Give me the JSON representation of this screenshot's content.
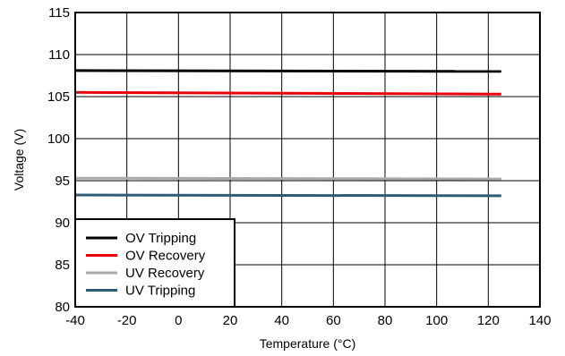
{
  "chart_data": {
    "type": "line",
    "title": "",
    "xlabel": "Temperature (°C)",
    "ylabel": "Voltage (V)",
    "xlim": [
      -40,
      140
    ],
    "ylim": [
      80,
      115
    ],
    "xticks": [
      -40,
      -20,
      0,
      20,
      40,
      60,
      80,
      100,
      120,
      140
    ],
    "yticks": [
      80,
      85,
      90,
      95,
      100,
      105,
      110,
      115
    ],
    "grid": true,
    "legend_position": "bottom-left",
    "series": [
      {
        "name": "OV Tripping",
        "color": "#000000",
        "x": [
          -40,
          125
        ],
        "y": [
          108.1,
          108.0
        ]
      },
      {
        "name": "OV Recovery",
        "color": "#e8000b",
        "x": [
          -40,
          125
        ],
        "y": [
          105.5,
          105.3
        ]
      },
      {
        "name": "UV Recovery",
        "color": "#a9a9a9",
        "x": [
          -40,
          125
        ],
        "y": [
          95.3,
          95.2
        ]
      },
      {
        "name": "UV Tripping",
        "color": "#2e5d73",
        "x": [
          -40,
          125
        ],
        "y": [
          93.3,
          93.2
        ]
      }
    ]
  }
}
